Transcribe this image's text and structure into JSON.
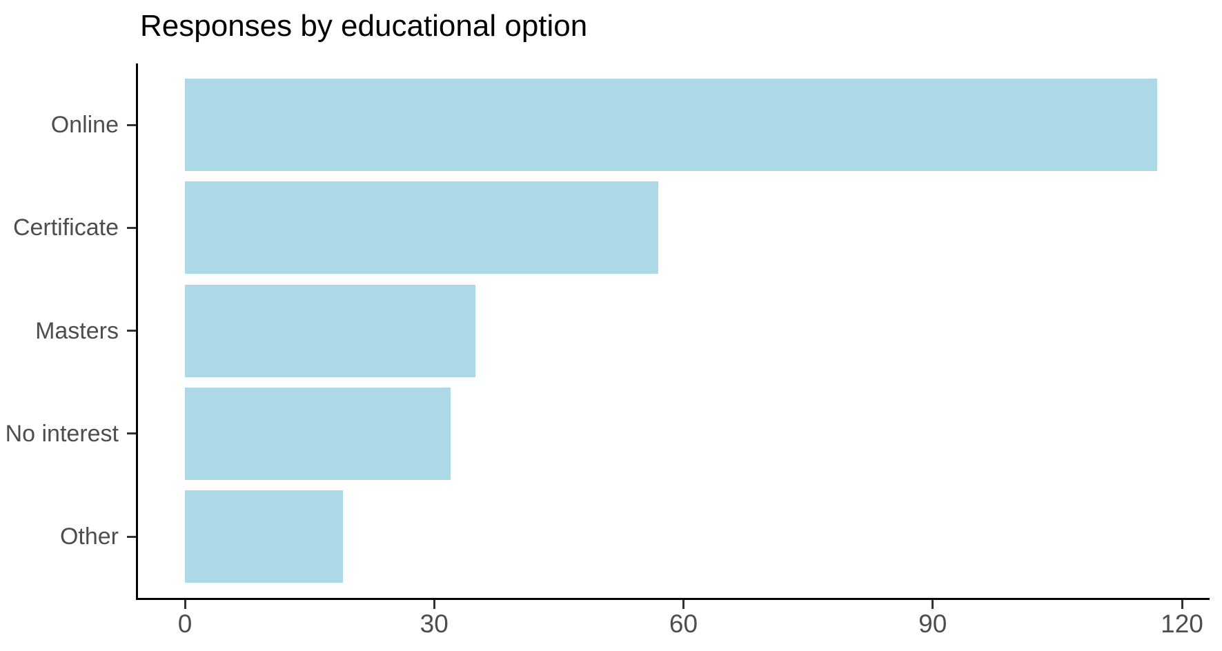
{
  "chart_data": {
    "type": "bar",
    "orientation": "horizontal",
    "title": "Responses by educational option",
    "categories": [
      "Online",
      "Certificate",
      "Masters",
      "No interest",
      "Other"
    ],
    "values": [
      117,
      57,
      35,
      32,
      19
    ],
    "x_tick_labels": [
      "0",
      "30",
      "60",
      "90",
      "120"
    ],
    "x_tick_values": [
      0,
      30,
      60,
      90,
      120
    ],
    "xlim": [
      0,
      123
    ],
    "xlabel": "",
    "ylabel": "",
    "grid": false,
    "legend": false,
    "colors": {
      "bar_fill": "#ADD8E6",
      "axis_line": "#000000",
      "tick_mark": "#333333",
      "axis_text": "#4D4D4D",
      "title_text": "#000000",
      "background": "#FFFFFF"
    }
  }
}
